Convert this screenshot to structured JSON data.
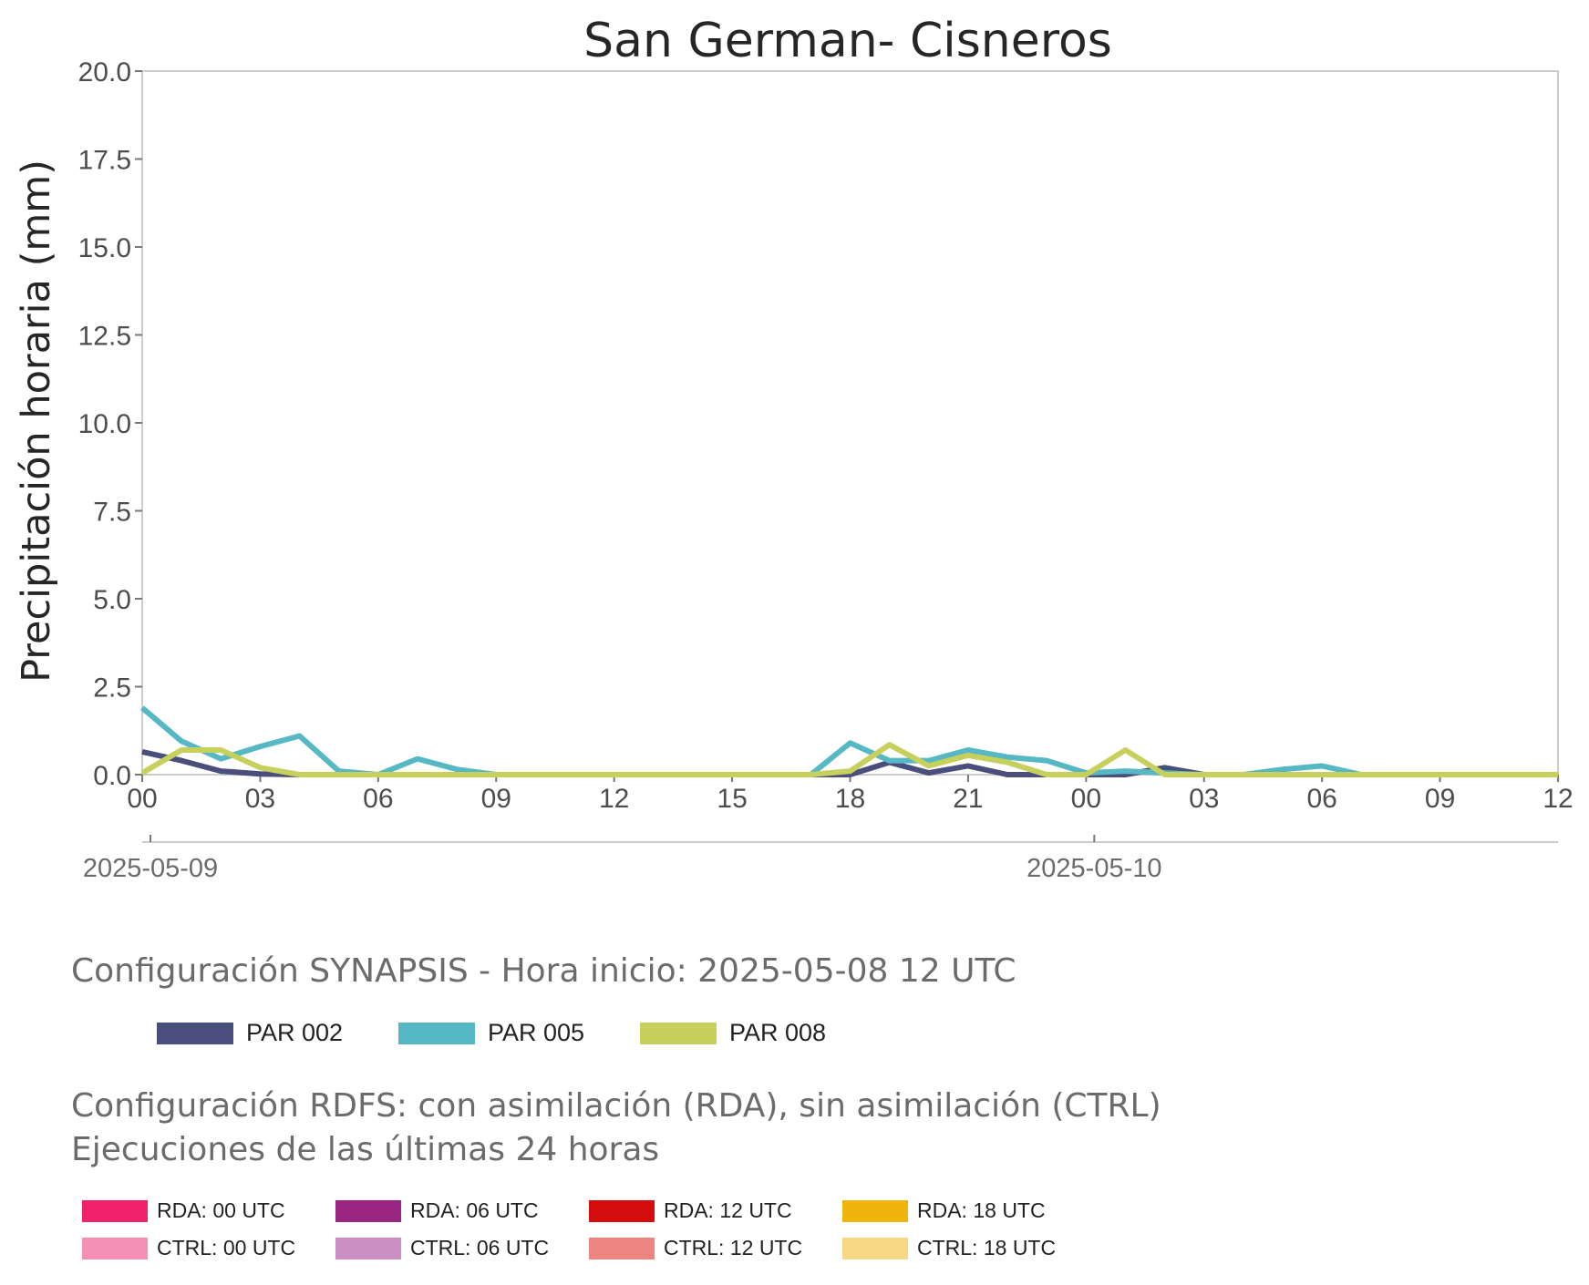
{
  "chart_data": {
    "type": "line",
    "title": "San German- Cisneros",
    "ylabel": "Precipitación horaria (mm)",
    "xlabel": "",
    "ylim": [
      0,
      20
    ],
    "y_ticks": [
      "0.0",
      "2.5",
      "5.0",
      "7.5",
      "10.0",
      "12.5",
      "15.0",
      "17.5",
      "20.0"
    ],
    "x_hour_ticks": [
      "00",
      "03",
      "06",
      "09",
      "12",
      "15",
      "18",
      "21",
      "00",
      "03",
      "06",
      "09",
      "12"
    ],
    "x_date_ticks": [
      {
        "hour_index": 0,
        "label": "2025-05-09"
      },
      {
        "hour_index": 24,
        "label": "2025-05-10"
      }
    ],
    "x_range_hours": [
      0,
      36
    ],
    "grid": false,
    "series": [
      {
        "name": "PAR 002",
        "color": "#4a4e7c",
        "values": [
          0.65,
          0.4,
          0.1,
          0.02,
          0,
          0,
          0,
          0,
          0,
          0,
          0,
          0,
          0,
          0,
          0,
          0,
          0,
          0,
          0,
          0.35,
          0.05,
          0.25,
          0,
          0,
          0,
          0,
          0.2,
          0,
          0,
          0,
          0,
          0,
          0,
          0,
          0,
          0,
          0
        ]
      },
      {
        "name": "PAR 005",
        "color": "#55b8c4",
        "values": [
          1.9,
          0.95,
          0.45,
          0.8,
          1.1,
          0.1,
          0,
          0.45,
          0.15,
          0,
          0,
          0,
          0,
          0,
          0,
          0,
          0,
          0,
          0.9,
          0.4,
          0.4,
          0.7,
          0.5,
          0.4,
          0.05,
          0.1,
          0.05,
          0,
          0,
          0.15,
          0.25,
          0,
          0,
          0,
          0,
          0,
          0
        ]
      },
      {
        "name": "PAR 008",
        "color": "#c7d05c",
        "values": [
          0.05,
          0.7,
          0.7,
          0.2,
          0,
          0,
          0,
          0,
          0,
          0,
          0,
          0,
          0,
          0,
          0,
          0,
          0,
          0,
          0.1,
          0.85,
          0.25,
          0.55,
          0.35,
          0,
          0,
          0.7,
          0,
          0,
          0,
          0,
          0,
          0,
          0,
          0,
          0,
          0,
          0
        ]
      }
    ]
  },
  "synapsis_legend": {
    "title": "Configuración SYNAPSIS - Hora inicio: 2025-05-08 12 UTC",
    "items": [
      {
        "label": "PAR 002",
        "color": "#4a4e7c"
      },
      {
        "label": "PAR 005",
        "color": "#55b8c4"
      },
      {
        "label": "PAR 008",
        "color": "#c7d05c"
      }
    ]
  },
  "rdfs_legend": {
    "title": "Configuración RDFS: con asimilación (RDA), sin asimilación (CTRL)\n Ejecuciones de las últimas 24 horas",
    "items": [
      {
        "label": "RDA: 00 UTC",
        "color": "#f0226a"
      },
      {
        "label": "RDA: 06 UTC",
        "color": "#9a2684"
      },
      {
        "label": "RDA: 12 UTC",
        "color": "#d60d0d"
      },
      {
        "label": "RDA: 18 UTC",
        "color": "#f0b50a"
      },
      {
        "label": "CTRL: 00 UTC",
        "color": "#f68fb5"
      },
      {
        "label": "CTRL: 06 UTC",
        "color": "#cc8fc3"
      },
      {
        "label": "CTRL: 12 UTC",
        "color": "#ec8580"
      },
      {
        "label": "CTRL: 18 UTC",
        "color": "#f6d884"
      }
    ]
  }
}
